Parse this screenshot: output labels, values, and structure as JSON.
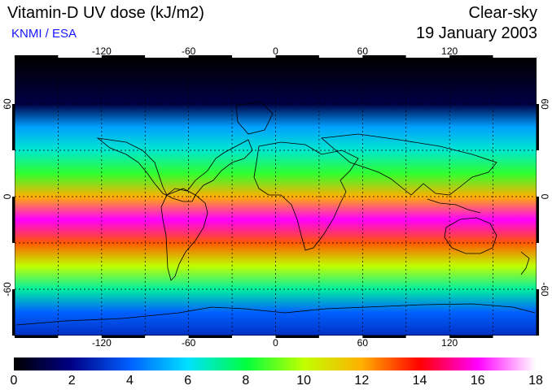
{
  "title": "Vitamin-D UV dose (kJ/m2)",
  "organization": "KNMI / ESA",
  "sky_condition": "Clear-sky",
  "date": "19 January 2003",
  "map": {
    "projection": "equirectangular",
    "lon_range": [
      -180,
      180
    ],
    "lat_range": [
      -90,
      90
    ],
    "lon_ticks": [
      "-120",
      "-60",
      "0",
      "60",
      "120"
    ],
    "lat_ticks": [
      "60",
      "0",
      "-60"
    ],
    "graticule": "dashed every 30 degrees",
    "coastlines": true
  },
  "colorbar": {
    "min": 0,
    "max": 18,
    "labels": [
      "0",
      "2",
      "4",
      "6",
      "8",
      "10",
      "12",
      "14",
      "16",
      "18"
    ],
    "colors": [
      "#000000",
      "#000088",
      "#0060ff",
      "#00e0ff",
      "#00ff40",
      "#c0ff00",
      "#ffb000",
      "#ff0000",
      "#ff00ff",
      "#ffffff"
    ]
  },
  "dose_profile": {
    "lat": [
      90,
      60,
      45,
      30,
      15,
      0,
      -15,
      -30,
      -45,
      -60,
      -75,
      -90
    ],
    "value": [
      0,
      1,
      5,
      6.5,
      8.5,
      12,
      16,
      13,
      10,
      7,
      4,
      3
    ]
  }
}
